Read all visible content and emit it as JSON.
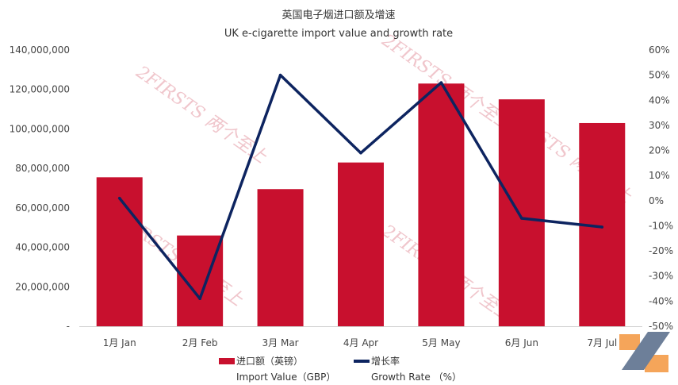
{
  "chart_data": {
    "type": "bar",
    "title": "英国电子烟进口额及增速",
    "subtitle": "UK e-cigarette import value and growth rate",
    "categories": [
      "1月 Jan",
      "2月 Feb",
      "3月 Mar",
      "4月 Apr",
      "5月 May",
      "6月 Jun",
      "7月 Jul"
    ],
    "series": [
      {
        "name": "进口额（英镑） Import Value（GBP）",
        "name_cn": "进口额（英镑）",
        "name_en": "Import Value（GBP）",
        "type": "bar",
        "axis": "left",
        "color": "#c8102e",
        "values": [
          75500000,
          46000000,
          69500000,
          83000000,
          123000000,
          115000000,
          103000000
        ]
      },
      {
        "name": "增长率 Growth Rate （%）",
        "name_cn": "增长率",
        "name_en": "Growth Rate （%）",
        "type": "line",
        "axis": "right",
        "color": "#0d2460",
        "values": [
          1,
          -39,
          50,
          19,
          47,
          -7,
          -10.5
        ]
      }
    ],
    "ylim": [
      0,
      140000000
    ],
    "y_ticks": [
      "-",
      "20,000,000",
      "40,000,000",
      "60,000,000",
      "80,000,000",
      "100,000,000",
      "120,000,000",
      "140,000,000"
    ],
    "y2lim": [
      -50,
      60
    ],
    "y2_ticks": [
      "-50%",
      "-40%",
      "-30%",
      "-20%",
      "-10%",
      "0%",
      "10%",
      "20%",
      "30%",
      "40%",
      "50%",
      "60%"
    ],
    "grid": false,
    "legend_position": "bottom"
  },
  "watermark": {
    "text": "2FIRSTS 两个至上",
    "color": "#f0c6cc"
  },
  "logo": {
    "colors": [
      "#f5a55a",
      "#6d7f99"
    ]
  }
}
